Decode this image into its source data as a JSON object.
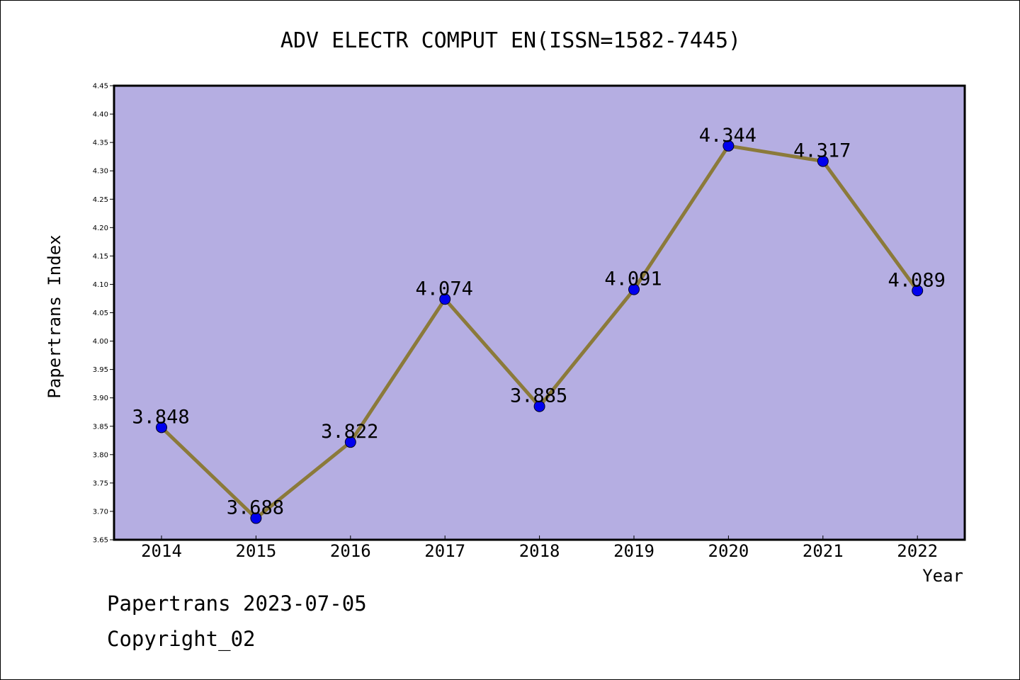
{
  "chart_data": {
    "type": "line",
    "title": "ADV ELECTR COMPUT EN(ISSN=1582-7445)",
    "xlabel": "Year",
    "ylabel": "Papertrans Index",
    "categories": [
      "2014",
      "2015",
      "2016",
      "2017",
      "2018",
      "2019",
      "2020",
      "2021",
      "2022"
    ],
    "series": [
      {
        "values": [
          3.848,
          3.688,
          3.822,
          4.074,
          3.885,
          4.091,
          4.344,
          4.317,
          4.089
        ]
      }
    ],
    "data_labels": [
      "3.848",
      "3.688",
      "3.822",
      "4.074",
      "3.885",
      "4.091",
      "4.344",
      "4.317",
      "4.089"
    ],
    "ylim": [
      3.65,
      4.45
    ],
    "ytick_step": 0.05,
    "ytick_labels": [
      "3.65",
      "3.70",
      "3.75",
      "3.80",
      "3.85",
      "3.90",
      "3.95",
      "4.00",
      "4.05",
      "4.10",
      "4.15",
      "4.20",
      "4.25",
      "4.30",
      "4.35",
      "4.40",
      "4.45"
    ],
    "grid": false,
    "colors": {
      "plot_background": "#b5aee2",
      "line": "#8b7a3a",
      "marker": "#0000ee",
      "axis": "#000000"
    }
  },
  "footer": {
    "date_text": "Papertrans 2023-07-05",
    "copyright_text": "Copyright_02"
  }
}
